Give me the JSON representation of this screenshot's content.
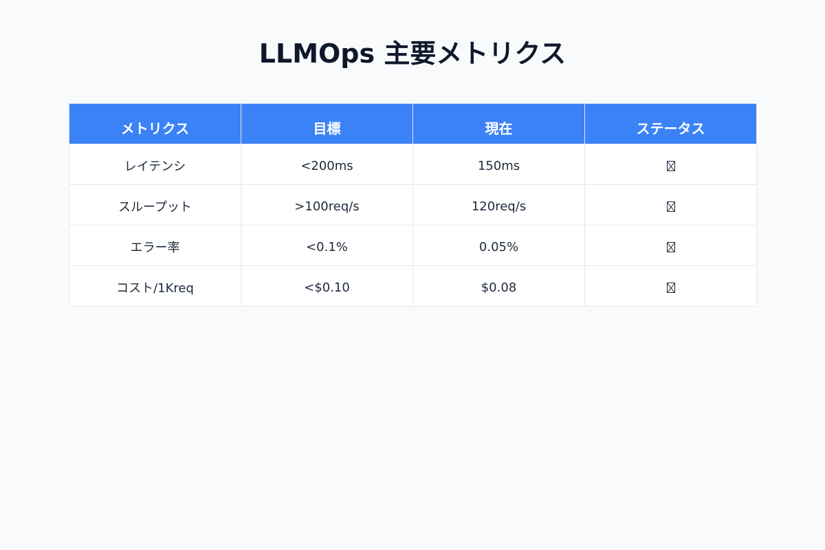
{
  "page": {
    "title": "LLMOps 主要メトリクス"
  },
  "table": {
    "headers": [
      "メトリクス",
      "目標",
      "現在",
      "ステータス"
    ],
    "rows": [
      {
        "metric": "レイテンシ",
        "target": "<200ms",
        "current": "150ms",
        "status_icon": "missing-glyph-icon"
      },
      {
        "metric": "スループット",
        "target": ">100req/s",
        "current": "120req/s",
        "status_icon": "missing-glyph-icon"
      },
      {
        "metric": "エラー率",
        "target": "<0.1%",
        "current": "0.05%",
        "status_icon": "missing-glyph-icon"
      },
      {
        "metric": "コスト/1Kreq",
        "target": "<$0.10",
        "current": "$0.08",
        "status_icon": "missing-glyph-icon"
      }
    ]
  },
  "colors": {
    "background": "#f8fafc",
    "header_background": "#3b82f6",
    "header_text": "#ffffff",
    "title_text": "#0f172a",
    "border": "#e2e8f0"
  }
}
